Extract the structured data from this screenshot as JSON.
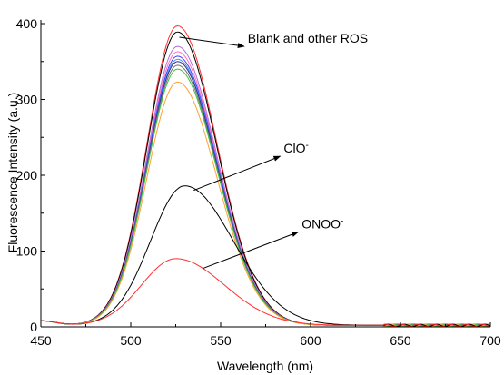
{
  "chart_data": {
    "type": "line",
    "title": "",
    "xlabel": "Wavelength (nm)",
    "ylabel": "Fluorescence Intensity (a.u.)",
    "xlim": [
      450,
      700
    ],
    "ylim": [
      0,
      400
    ],
    "x_ticks": [
      450,
      500,
      550,
      600,
      650,
      700
    ],
    "y_ticks": [
      0,
      100,
      200,
      300,
      400
    ],
    "grid": false,
    "peak_wavelength_nm": 526,
    "series": [
      {
        "peak": 395,
        "color": "#ff3030"
      },
      {
        "peak": 387,
        "color": "#000000"
      },
      {
        "peak": 368,
        "color": "#b070d8"
      },
      {
        "peak": 361,
        "color": "#ff70c0"
      },
      {
        "peak": 355,
        "color": "#4040ff"
      },
      {
        "peak": 351,
        "color": "#4090ff"
      },
      {
        "peak": 348,
        "color": "#303080"
      },
      {
        "peak": 343,
        "color": "#707070"
      },
      {
        "peak": 338,
        "color": "#40c040"
      },
      {
        "peak": 321,
        "color": "#ffa030"
      },
      {
        "name": "ClO⁻",
        "peak": 184,
        "peak_x": 530,
        "color": "#000000"
      },
      {
        "name": "ONOO⁻",
        "peak": 88,
        "peak_x": 525,
        "color": "#ff3030"
      }
    ],
    "annotations": [
      {
        "text": "Blank and other ROS",
        "target": [
          527,
          382
        ],
        "label_at": [
          560,
          370
        ]
      },
      {
        "text": "ClO",
        "sup": "-",
        "target": [
          535,
          180
        ],
        "label_at": [
          580,
          225
        ]
      },
      {
        "text": "ONOO",
        "sup": "-",
        "target": [
          540,
          77
        ],
        "label_at": [
          590,
          125
        ]
      }
    ]
  }
}
